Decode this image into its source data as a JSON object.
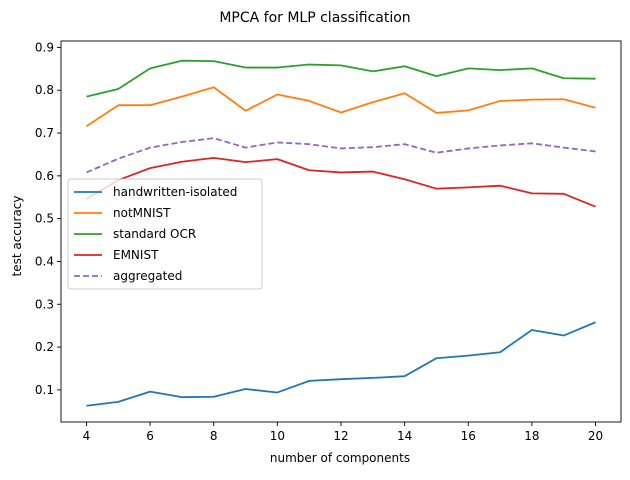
{
  "chart_data": {
    "type": "line",
    "title": "MPCA for MLP classification",
    "xlabel": "number of components",
    "ylabel": "test accuracy",
    "xlim": [
      3.2,
      20.8
    ],
    "ylim": [
      0.025,
      0.915
    ],
    "xticks": [
      4,
      6,
      8,
      10,
      12,
      14,
      16,
      18,
      20
    ],
    "yticks": [
      0.1,
      0.2,
      0.3,
      0.4,
      0.5,
      0.6,
      0.7,
      0.8,
      0.9
    ],
    "x": [
      4,
      5,
      6,
      7,
      8,
      9,
      10,
      11,
      12,
      13,
      14,
      15,
      16,
      17,
      18,
      19,
      20
    ],
    "legend_position": "center-left",
    "grid": false,
    "series": [
      {
        "name": "handwritten-isolated",
        "color": "#1f77b4",
        "dash": false,
        "values": [
          0.063,
          0.072,
          0.096,
          0.083,
          0.084,
          0.102,
          0.094,
          0.121,
          0.125,
          0.128,
          0.132,
          0.174,
          0.18,
          0.188,
          0.24,
          0.227,
          0.258
        ]
      },
      {
        "name": "notMNIST",
        "color": "#ff7f0e",
        "dash": false,
        "values": [
          0.716,
          0.765,
          0.765,
          0.785,
          0.807,
          0.752,
          0.79,
          0.775,
          0.748,
          0.772,
          0.793,
          0.747,
          0.753,
          0.775,
          0.778,
          0.779,
          0.759
        ]
      },
      {
        "name": "standard OCR",
        "color": "#2ca02c",
        "dash": false,
        "values": [
          0.785,
          0.803,
          0.851,
          0.869,
          0.868,
          0.853,
          0.853,
          0.86,
          0.858,
          0.844,
          0.856,
          0.833,
          0.851,
          0.847,
          0.851,
          0.828,
          0.827
        ]
      },
      {
        "name": "EMNIST",
        "color": "#d62728",
        "dash": false,
        "values": [
          0.546,
          0.59,
          0.618,
          0.633,
          0.642,
          0.632,
          0.639,
          0.613,
          0.608,
          0.61,
          0.592,
          0.57,
          0.573,
          0.577,
          0.559,
          0.558,
          0.528
        ]
      },
      {
        "name": "aggregated",
        "color": "#9467bd",
        "dash": true,
        "values": [
          0.608,
          0.64,
          0.666,
          0.679,
          0.688,
          0.666,
          0.678,
          0.674,
          0.664,
          0.667,
          0.674,
          0.654,
          0.664,
          0.671,
          0.676,
          0.666,
          0.657
        ]
      }
    ]
  }
}
